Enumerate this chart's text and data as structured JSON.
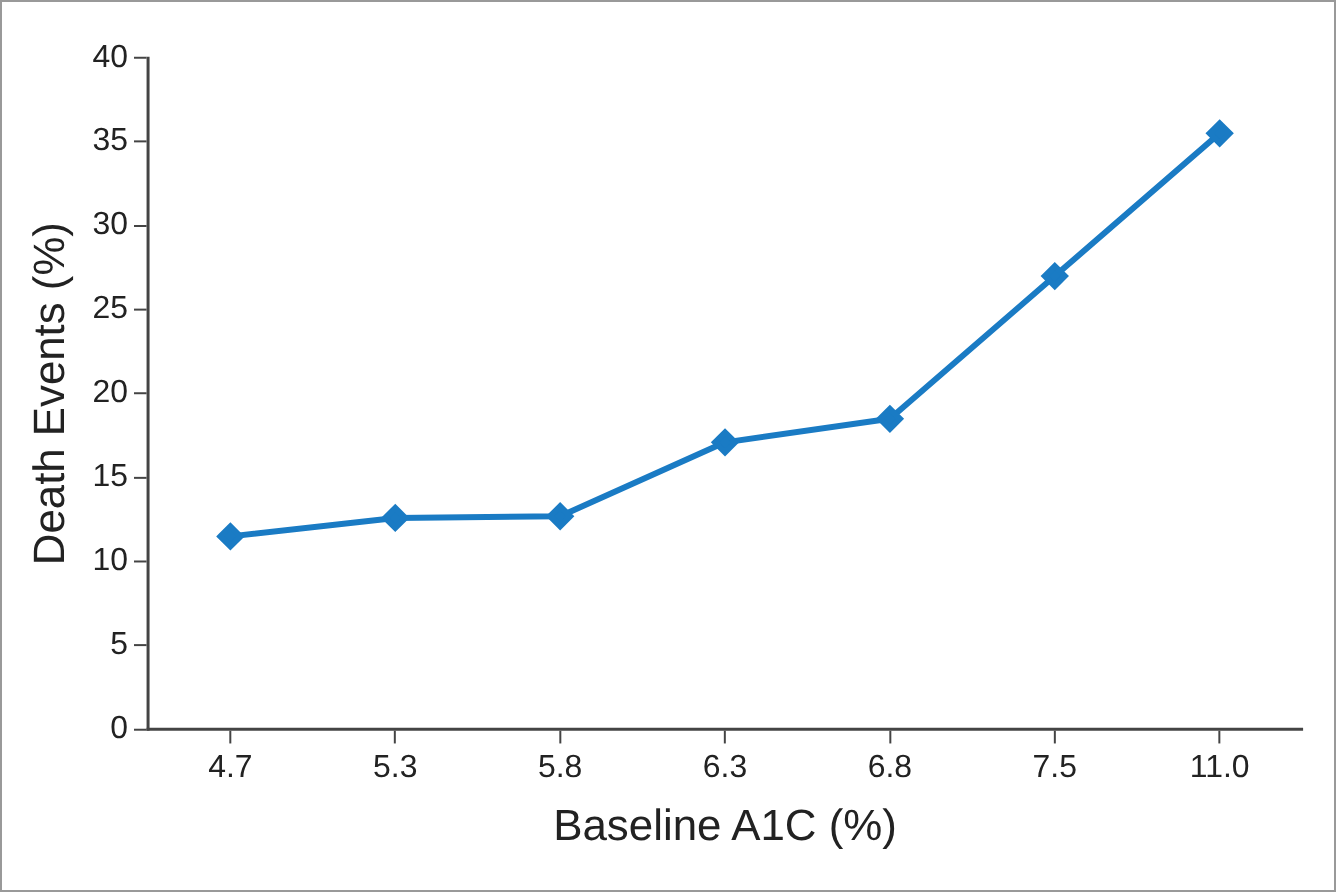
{
  "chart_data": {
    "type": "line",
    "xlabel": "Baseline A1C (%)",
    "ylabel": "Death Events (%)",
    "categories": [
      "4.7",
      "5.3",
      "5.8",
      "6.3",
      "6.8",
      "7.5",
      "11.0"
    ],
    "series": [
      {
        "color": "#1a7bc4",
        "values": [
          11.5,
          12.6,
          12.7,
          17.1,
          18.5,
          27.0,
          35.5
        ]
      }
    ],
    "ylim": [
      0,
      40
    ],
    "yticks": [
      0,
      5,
      10,
      15,
      20,
      25,
      30,
      35,
      40
    ],
    "grid": false,
    "legend": false,
    "marker": "diamond",
    "line_style": "solid"
  }
}
